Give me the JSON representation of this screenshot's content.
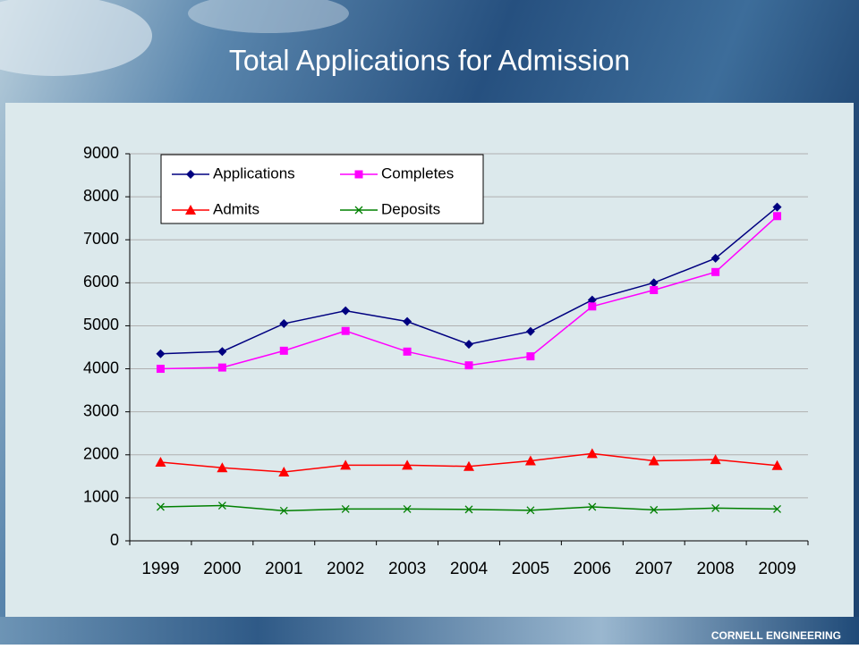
{
  "chart_data": {
    "type": "line",
    "title": "Total Applications for Admission",
    "categories": [
      "1999",
      "2000",
      "2001",
      "2002",
      "2003",
      "2004",
      "2005",
      "2006",
      "2007",
      "2008",
      "2009"
    ],
    "series": [
      {
        "name": "Applications",
        "color": "#000080",
        "marker": "diamond",
        "values": [
          4350,
          4400,
          5050,
          5350,
          5100,
          4570,
          4870,
          5600,
          6000,
          6570,
          7760
        ]
      },
      {
        "name": "Completes",
        "color": "#ff00ff",
        "marker": "square",
        "values": [
          4000,
          4030,
          4420,
          4880,
          4400,
          4080,
          4290,
          5450,
          5830,
          6250,
          7550
        ]
      },
      {
        "name": "Admits",
        "color": "#ff0000",
        "marker": "triangle",
        "values": [
          1830,
          1700,
          1600,
          1760,
          1760,
          1730,
          1860,
          2030,
          1860,
          1890,
          1750
        ]
      },
      {
        "name": "Deposits",
        "color": "#008000",
        "marker": "x",
        "values": [
          790,
          820,
          700,
          740,
          740,
          730,
          710,
          790,
          720,
          760,
          740
        ]
      }
    ],
    "ylim": [
      0,
      9000
    ],
    "yticks": [
      0,
      1000,
      2000,
      3000,
      4000,
      5000,
      6000,
      7000,
      8000,
      9000
    ],
    "grid": true,
    "legend": "top-left"
  },
  "footer": "CORNELL ENGINEERING"
}
